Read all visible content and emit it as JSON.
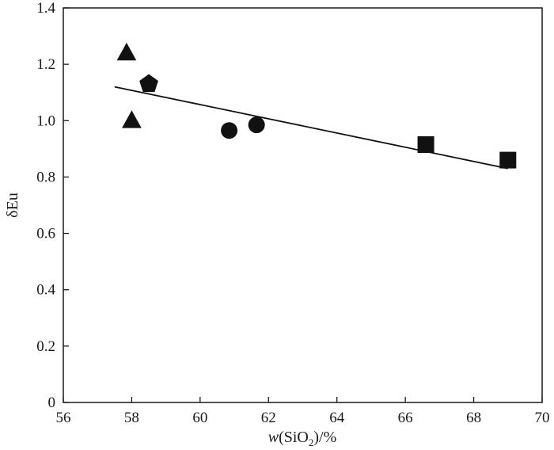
{
  "chart_data": {
    "type": "scatter",
    "title": "",
    "xlabel": {
      "var": "w",
      "open": "(SiO",
      "sub": "2",
      "close": ")/%"
    },
    "ylabel": "δEu",
    "xlim": [
      56,
      70
    ],
    "ylim": [
      0,
      1.4
    ],
    "x_ticks": [
      56,
      58,
      60,
      62,
      64,
      66,
      68,
      70
    ],
    "y_ticks": [
      0,
      0.2,
      0.4,
      0.6,
      0.8,
      1.0,
      1.2,
      1.4
    ],
    "y_tick_labels": [
      "0",
      "0.2",
      "0.4",
      "0.6",
      "0.8",
      "1.0",
      "1.2",
      "1.4"
    ],
    "grid": false,
    "series": [
      {
        "marker": "triangle",
        "points": [
          [
            57.85,
            1.24
          ],
          [
            58.0,
            1.0
          ]
        ]
      },
      {
        "marker": "pentagon",
        "points": [
          [
            58.5,
            1.13
          ]
        ]
      },
      {
        "marker": "circle",
        "points": [
          [
            60.85,
            0.965
          ],
          [
            61.65,
            0.985
          ]
        ]
      },
      {
        "marker": "square",
        "points": [
          [
            66.6,
            0.915
          ],
          [
            69.0,
            0.86
          ]
        ]
      }
    ],
    "trend_line": {
      "x": [
        57.5,
        69.0
      ],
      "y": [
        1.12,
        0.83
      ]
    }
  }
}
